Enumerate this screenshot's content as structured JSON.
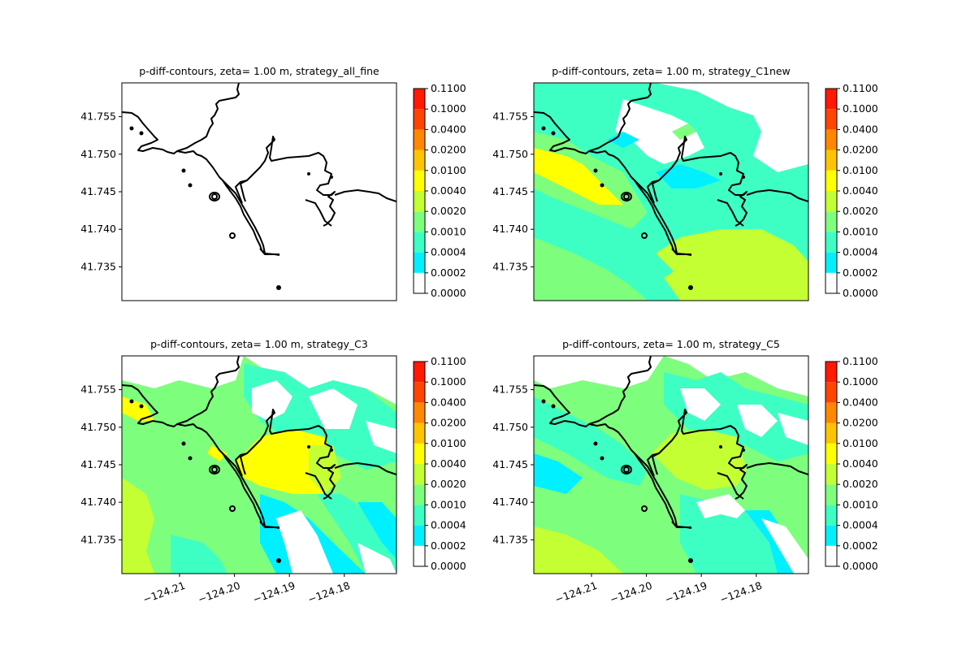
{
  "chart_data": [
    {
      "type": "heatmap",
      "title": "p-diff-contours, zeta= 1.00 m, strategy_all_fine",
      "xlabel": "",
      "ylabel": "",
      "xlim": [
        -124.2205,
        -124.1705
      ],
      "ylim": [
        41.7305,
        41.7595
      ],
      "yticks": [
        41.755,
        41.75,
        41.745,
        41.74,
        41.735
      ],
      "ytick_labels": [
        "41.755",
        "41.750",
        "41.745",
        "41.740",
        "41.735"
      ],
      "xticks": [],
      "xtick_labels": [],
      "colorbar": {
        "levels": [
          "0.0000",
          "0.0002",
          "0.0004",
          "0.0010",
          "0.0020",
          "0.0040",
          "0.0100",
          "0.0200",
          "0.0400",
          "0.1000",
          "0.1100"
        ],
        "colors": [
          "#ffffff",
          "#00f0ff",
          "#3dffc4",
          "#7dff7d",
          "#c4ff34",
          "#ffff00",
          "#ffc400",
          "#ff8800",
          "#ff4400",
          "#ff1a00"
        ]
      },
      "field_description": "no colored difference; white everywhere"
    },
    {
      "type": "heatmap",
      "title": "p-diff-contours, zeta= 1.00 m, strategy_C1new",
      "xlabel": "",
      "ylabel": "",
      "xlim": [
        -124.2205,
        -124.1705
      ],
      "ylim": [
        41.7305,
        41.7595
      ],
      "yticks": [
        41.755,
        41.75,
        41.745,
        41.74,
        41.735
      ],
      "ytick_labels": [
        "41.755",
        "41.750",
        "41.745",
        "41.740",
        "41.735"
      ],
      "xticks": [],
      "xtick_labels": [],
      "colorbar": {
        "levels": [
          "0.0000",
          "0.0002",
          "0.0004",
          "0.0010",
          "0.0020",
          "0.0040",
          "0.0100",
          "0.0200",
          "0.0400",
          "0.1000",
          "0.1100"
        ],
        "colors": [
          "#ffffff",
          "#00f0ff",
          "#3dffc4",
          "#7dff7d",
          "#c4ff34",
          "#ffff00",
          "#ffc400",
          "#ff8800",
          "#ff4400",
          "#ff1a00"
        ]
      }
    },
    {
      "type": "heatmap",
      "title": "p-diff-contours, zeta= 1.00 m, strategy_C3",
      "xlabel": "",
      "ylabel": "",
      "xlim": [
        -124.2205,
        -124.1705
      ],
      "ylim": [
        41.7305,
        41.7595
      ],
      "yticks": [
        41.755,
        41.75,
        41.745,
        41.74,
        41.735
      ],
      "ytick_labels": [
        "41.755",
        "41.750",
        "41.745",
        "41.740",
        "41.735"
      ],
      "xticks": [
        -124.21,
        -124.2,
        -124.19,
        -124.18
      ],
      "xtick_labels": [
        "−124.21",
        "−124.20",
        "−124.19",
        "−124.18"
      ],
      "colorbar": {
        "levels": [
          "0.0000",
          "0.0002",
          "0.0004",
          "0.0010",
          "0.0020",
          "0.0040",
          "0.0100",
          "0.0200",
          "0.0400",
          "0.1000",
          "0.1100"
        ],
        "colors": [
          "#ffffff",
          "#00f0ff",
          "#3dffc4",
          "#7dff7d",
          "#c4ff34",
          "#ffff00",
          "#ffc400",
          "#ff8800",
          "#ff4400",
          "#ff1a00"
        ]
      }
    },
    {
      "type": "heatmap",
      "title": "p-diff-contours, zeta= 1.00 m, strategy_C5",
      "xlabel": "",
      "ylabel": "",
      "xlim": [
        -124.2205,
        -124.1705
      ],
      "ylim": [
        41.7305,
        41.7595
      ],
      "yticks": [
        41.755,
        41.75,
        41.745,
        41.74,
        41.735
      ],
      "ytick_labels": [
        "41.755",
        "41.750",
        "41.745",
        "41.740",
        "41.735"
      ],
      "xticks": [
        -124.21,
        -124.2,
        -124.19,
        -124.18
      ],
      "xtick_labels": [
        "−124.21",
        "−124.20",
        "−124.19",
        "−124.18"
      ],
      "colorbar": {
        "levels": [
          "0.0000",
          "0.0002",
          "0.0004",
          "0.0010",
          "0.0020",
          "0.0040",
          "0.0100",
          "0.0200",
          "0.0400",
          "0.1000",
          "0.1100"
        ],
        "colors": [
          "#ffffff",
          "#00f0ff",
          "#3dffc4",
          "#7dff7d",
          "#c4ff34",
          "#ffff00",
          "#ffc400",
          "#ff8800",
          "#ff4400",
          "#ff1a00"
        ]
      }
    }
  ],
  "coastline_color": "#000000"
}
